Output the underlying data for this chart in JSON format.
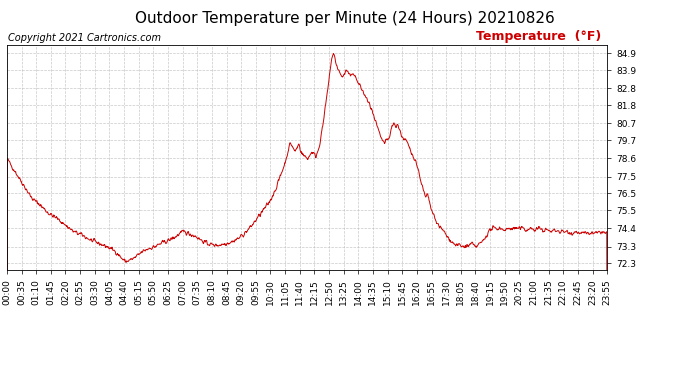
{
  "title": "Outdoor Temperature per Minute (24 Hours) 20210826",
  "copyright_text": "Copyright 2021 Cartronics.com",
  "legend_text": "Temperature  (°F)",
  "background_color": "#ffffff",
  "line_color": "#cc0000",
  "grid_color": "#bbbbbb",
  "yticks": [
    72.3,
    73.3,
    74.4,
    75.5,
    76.5,
    77.5,
    78.6,
    79.7,
    80.7,
    81.8,
    82.8,
    83.9,
    84.9
  ],
  "ylim": [
    71.9,
    85.4
  ],
  "xtick_labels": [
    "00:00",
    "00:35",
    "01:10",
    "01:45",
    "02:20",
    "02:55",
    "03:30",
    "04:05",
    "04:40",
    "05:15",
    "05:50",
    "06:25",
    "07:00",
    "07:35",
    "08:10",
    "08:45",
    "09:20",
    "09:55",
    "10:30",
    "11:05",
    "11:40",
    "12:15",
    "12:50",
    "13:25",
    "14:00",
    "14:35",
    "15:10",
    "15:45",
    "16:20",
    "16:55",
    "17:30",
    "18:05",
    "18:40",
    "19:15",
    "19:50",
    "20:25",
    "21:00",
    "21:35",
    "22:10",
    "22:45",
    "23:20",
    "23:55"
  ],
  "title_fontsize": 11,
  "copyright_fontsize": 7,
  "legend_fontsize": 9,
  "tick_fontsize": 6.5
}
